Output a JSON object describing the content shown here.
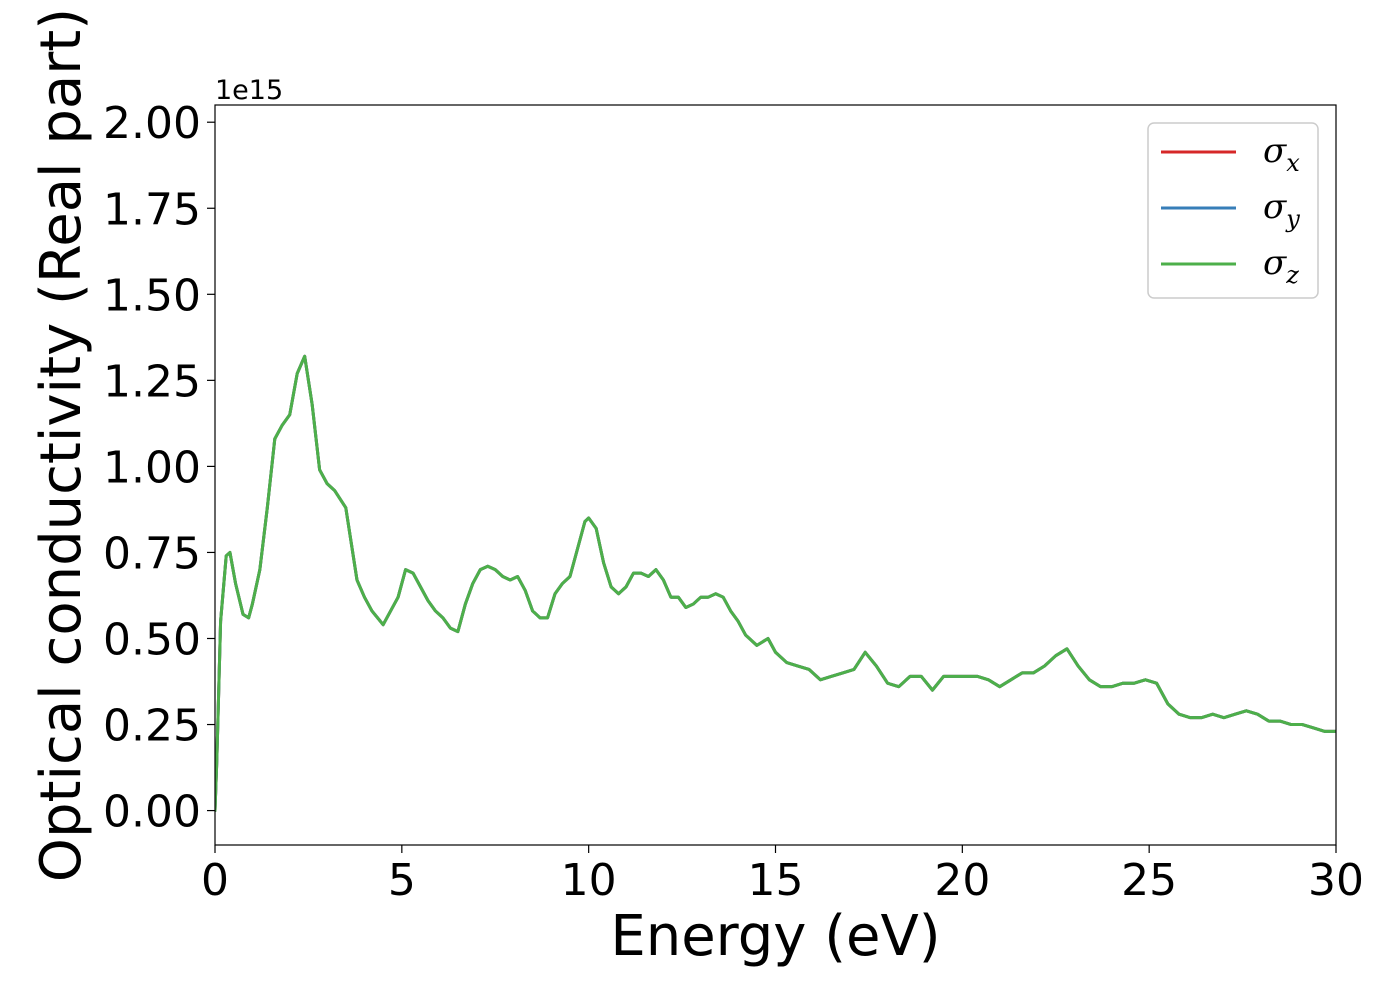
{
  "chart_data": {
    "type": "line",
    "title": "",
    "xlabel": "Energy (eV)",
    "ylabel": "Optical conductivity (Real part)",
    "y_offset_label": "1e15",
    "xlim": [
      0,
      30
    ],
    "ylim": [
      -0.1,
      2.05
    ],
    "xticks": [
      0,
      5,
      10,
      15,
      20,
      25,
      30
    ],
    "xtick_labels": [
      "0",
      "5",
      "10",
      "15",
      "20",
      "25",
      "30"
    ],
    "yticks": [
      0,
      0.25,
      0.5,
      0.75,
      1.0,
      1.25,
      1.5,
      1.75,
      2.0
    ],
    "ytick_labels": [
      "0.00",
      "0.25",
      "0.50",
      "0.75",
      "1.00",
      "1.25",
      "1.50",
      "1.75",
      "2.00"
    ],
    "grid": false,
    "legend_position": "top-right",
    "x": [
      0,
      0.05,
      0.15,
      0.3,
      0.4,
      0.55,
      0.75,
      0.9,
      1.0,
      1.2,
      1.4,
      1.6,
      1.8,
      2.0,
      2.2,
      2.4,
      2.6,
      2.8,
      3.0,
      3.2,
      3.5,
      3.8,
      4.0,
      4.2,
      4.5,
      4.7,
      4.9,
      5.1,
      5.3,
      5.5,
      5.7,
      5.9,
      6.1,
      6.3,
      6.5,
      6.7,
      6.9,
      7.1,
      7.3,
      7.5,
      7.7,
      7.9,
      8.1,
      8.3,
      8.5,
      8.7,
      8.9,
      9.1,
      9.3,
      9.5,
      9.7,
      9.9,
      10.0,
      10.2,
      10.4,
      10.6,
      10.8,
      11.0,
      11.2,
      11.4,
      11.6,
      11.8,
      12.0,
      12.2,
      12.4,
      12.6,
      12.8,
      13.0,
      13.2,
      13.4,
      13.6,
      13.8,
      14.0,
      14.2,
      14.5,
      14.8,
      15.0,
      15.3,
      15.6,
      15.9,
      16.2,
      16.5,
      16.8,
      17.1,
      17.4,
      17.7,
      18.0,
      18.3,
      18.6,
      18.9,
      19.2,
      19.5,
      19.8,
      20.1,
      20.4,
      20.7,
      21.0,
      21.3,
      21.6,
      21.9,
      22.2,
      22.5,
      22.8,
      23.1,
      23.4,
      23.7,
      24.0,
      24.3,
      24.6,
      24.9,
      25.2,
      25.5,
      25.8,
      26.1,
      26.4,
      26.7,
      27.0,
      27.3,
      27.6,
      27.9,
      28.2,
      28.5,
      28.8,
      29.1,
      29.4,
      29.7,
      30.0
    ],
    "series": [
      {
        "name": "σx",
        "color": "#d62728",
        "values": [
          0.0,
          0.15,
          0.55,
          0.74,
          0.75,
          0.66,
          0.57,
          0.56,
          0.6,
          0.7,
          0.88,
          1.08,
          1.12,
          1.15,
          1.27,
          1.32,
          1.18,
          0.99,
          0.95,
          0.93,
          0.88,
          0.67,
          0.62,
          0.58,
          0.54,
          0.58,
          0.62,
          0.7,
          0.69,
          0.65,
          0.61,
          0.58,
          0.56,
          0.53,
          0.52,
          0.6,
          0.66,
          0.7,
          0.71,
          0.7,
          0.68,
          0.67,
          0.68,
          0.64,
          0.58,
          0.56,
          0.56,
          0.63,
          0.66,
          0.68,
          0.76,
          0.84,
          0.85,
          0.82,
          0.72,
          0.65,
          0.63,
          0.65,
          0.69,
          0.69,
          0.68,
          0.7,
          0.67,
          0.62,
          0.62,
          0.59,
          0.6,
          0.62,
          0.62,
          0.63,
          0.62,
          0.58,
          0.55,
          0.51,
          0.48,
          0.5,
          0.46,
          0.43,
          0.42,
          0.41,
          0.38,
          0.39,
          0.4,
          0.41,
          0.46,
          0.42,
          0.37,
          0.36,
          0.39,
          0.39,
          0.35,
          0.39,
          0.39,
          0.39,
          0.39,
          0.38,
          0.36,
          0.38,
          0.4,
          0.4,
          0.42,
          0.45,
          0.47,
          0.42,
          0.38,
          0.36,
          0.36,
          0.37,
          0.37,
          0.38,
          0.37,
          0.31,
          0.28,
          0.27,
          0.27,
          0.28,
          0.27,
          0.28,
          0.29,
          0.28,
          0.26,
          0.26,
          0.25,
          0.25,
          0.24,
          0.23,
          0.23
        ]
      },
      {
        "name": "σy",
        "color": "#377eb8",
        "values": [
          0.0,
          0.15,
          0.55,
          0.74,
          0.75,
          0.66,
          0.57,
          0.56,
          0.6,
          0.7,
          0.88,
          1.08,
          1.12,
          1.15,
          1.27,
          1.32,
          1.18,
          0.99,
          0.95,
          0.93,
          0.88,
          0.67,
          0.62,
          0.58,
          0.54,
          0.58,
          0.62,
          0.7,
          0.69,
          0.65,
          0.61,
          0.58,
          0.56,
          0.53,
          0.52,
          0.6,
          0.66,
          0.7,
          0.71,
          0.7,
          0.68,
          0.67,
          0.68,
          0.64,
          0.58,
          0.56,
          0.56,
          0.63,
          0.66,
          0.68,
          0.76,
          0.84,
          0.85,
          0.82,
          0.72,
          0.65,
          0.63,
          0.65,
          0.69,
          0.69,
          0.68,
          0.7,
          0.67,
          0.62,
          0.62,
          0.59,
          0.6,
          0.62,
          0.62,
          0.63,
          0.62,
          0.58,
          0.55,
          0.51,
          0.48,
          0.5,
          0.46,
          0.43,
          0.42,
          0.41,
          0.38,
          0.39,
          0.4,
          0.41,
          0.46,
          0.42,
          0.37,
          0.36,
          0.39,
          0.39,
          0.35,
          0.39,
          0.39,
          0.39,
          0.39,
          0.38,
          0.36,
          0.38,
          0.4,
          0.4,
          0.42,
          0.45,
          0.47,
          0.42,
          0.38,
          0.36,
          0.36,
          0.37,
          0.37,
          0.38,
          0.37,
          0.31,
          0.28,
          0.27,
          0.27,
          0.28,
          0.27,
          0.28,
          0.29,
          0.28,
          0.26,
          0.26,
          0.25,
          0.25,
          0.24,
          0.23,
          0.23
        ]
      },
      {
        "name": "σz",
        "color": "#4daf4a",
        "values": [
          0.0,
          0.15,
          0.55,
          0.74,
          0.75,
          0.66,
          0.57,
          0.56,
          0.6,
          0.7,
          0.88,
          1.08,
          1.12,
          1.15,
          1.27,
          1.32,
          1.18,
          0.99,
          0.95,
          0.93,
          0.88,
          0.67,
          0.62,
          0.58,
          0.54,
          0.58,
          0.62,
          0.7,
          0.69,
          0.65,
          0.61,
          0.58,
          0.56,
          0.53,
          0.52,
          0.6,
          0.66,
          0.7,
          0.71,
          0.7,
          0.68,
          0.67,
          0.68,
          0.64,
          0.58,
          0.56,
          0.56,
          0.63,
          0.66,
          0.68,
          0.76,
          0.84,
          0.85,
          0.82,
          0.72,
          0.65,
          0.63,
          0.65,
          0.69,
          0.69,
          0.68,
          0.7,
          0.67,
          0.62,
          0.62,
          0.59,
          0.6,
          0.62,
          0.62,
          0.63,
          0.62,
          0.58,
          0.55,
          0.51,
          0.48,
          0.5,
          0.46,
          0.43,
          0.42,
          0.41,
          0.38,
          0.39,
          0.4,
          0.41,
          0.46,
          0.42,
          0.37,
          0.36,
          0.39,
          0.39,
          0.35,
          0.39,
          0.39,
          0.39,
          0.39,
          0.38,
          0.36,
          0.38,
          0.4,
          0.4,
          0.42,
          0.45,
          0.47,
          0.42,
          0.38,
          0.36,
          0.36,
          0.37,
          0.37,
          0.38,
          0.37,
          0.31,
          0.28,
          0.27,
          0.27,
          0.28,
          0.27,
          0.28,
          0.29,
          0.28,
          0.26,
          0.26,
          0.25,
          0.25,
          0.24,
          0.23,
          0.23
        ]
      }
    ],
    "legend": [
      {
        "symbol": "σ",
        "sub": "x",
        "color": "#d62728"
      },
      {
        "symbol": "σ",
        "sub": "y",
        "color": "#377eb8"
      },
      {
        "symbol": "σ",
        "sub": "z",
        "color": "#4daf4a"
      }
    ]
  }
}
